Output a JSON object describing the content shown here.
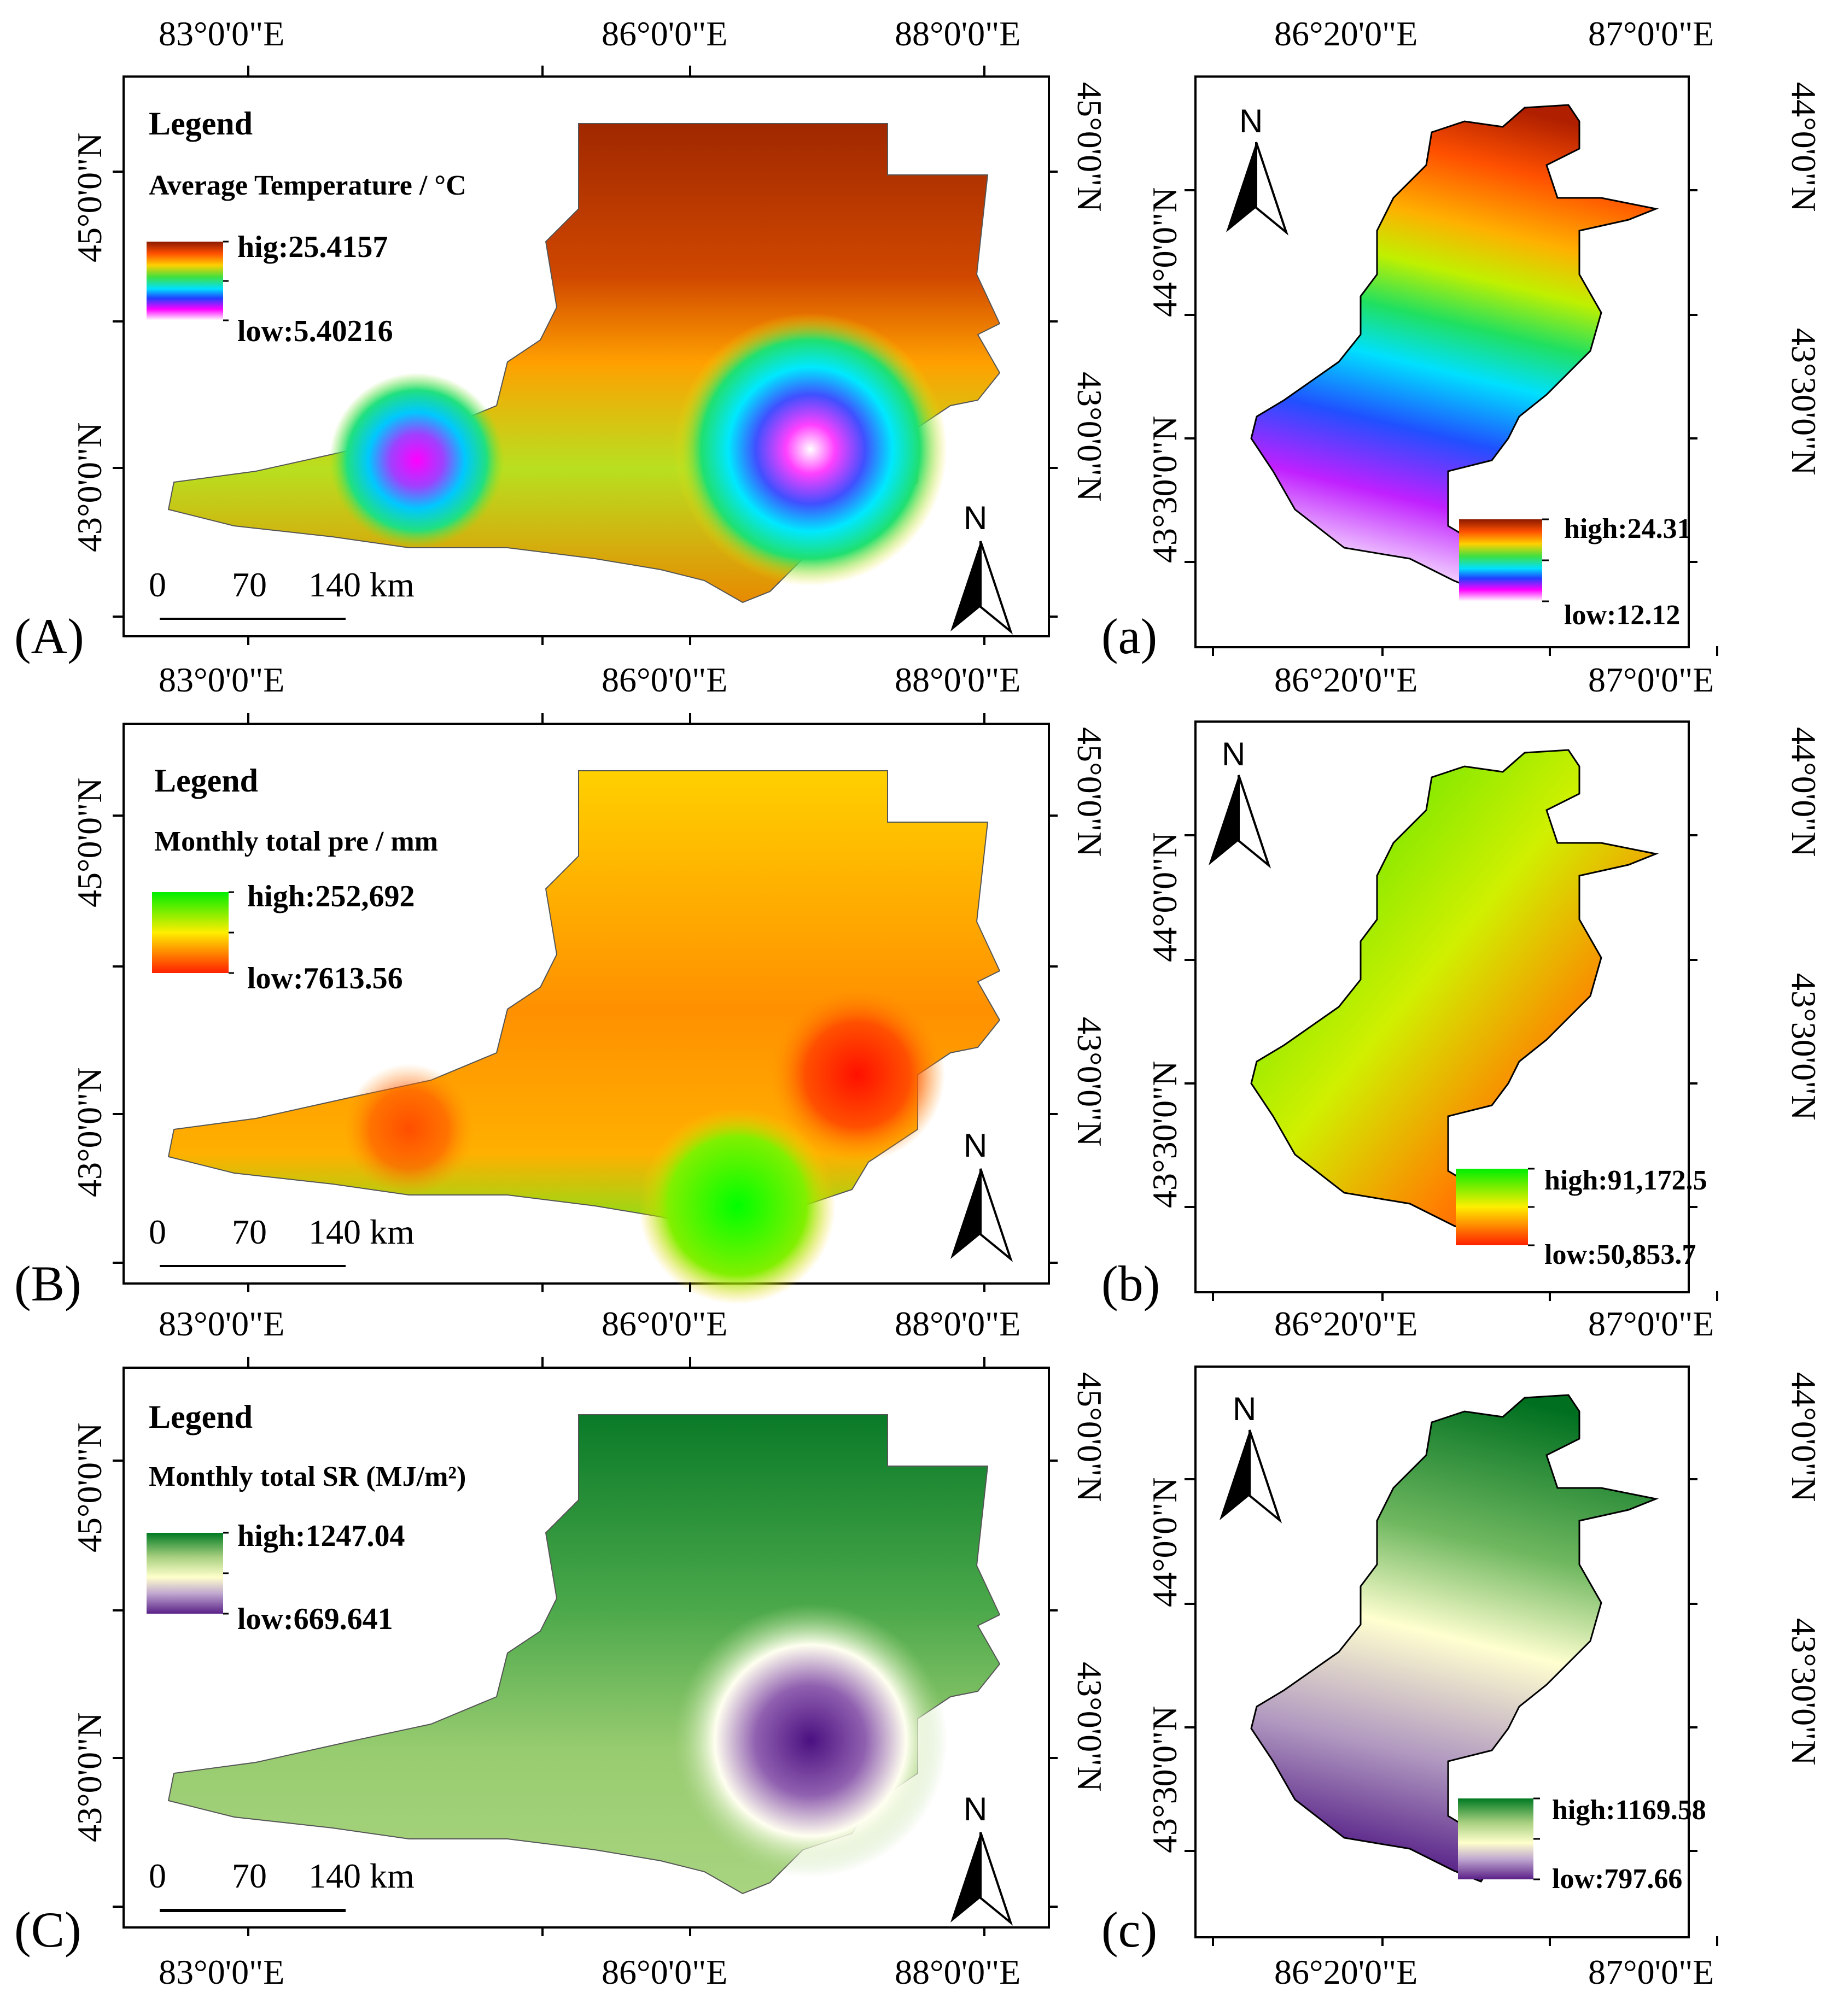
{
  "panels": {
    "A": {
      "label": "(A)",
      "legend_title": "Legend",
      "legend_subtitle": "Average Temperature / °C",
      "high": "hig:25.4157",
      "low": "low:5.40216",
      "ramp": "rainbow"
    },
    "B": {
      "label": "(B)",
      "legend_title": "Legend",
      "legend_subtitle": "Monthly total pre / mm",
      "high": "high:252,692",
      "low": "low:7613.56",
      "ramp": "green-yellow-red"
    },
    "C": {
      "label": "(C)",
      "legend_title": "Legend",
      "legend_subtitle": "Monthly total SR (MJ/m²)",
      "high": "high:1247.04",
      "low": "low:669.641",
      "ramp": "green-purple"
    },
    "a": {
      "label": "(a)",
      "high": "high:24.31",
      "low": "low:12.12"
    },
    "b": {
      "label": "(b)",
      "high": "high:91,172.5",
      "low": "low:50,853.7"
    },
    "c": {
      "label": "(c)",
      "high": "high:1169.58",
      "low": "low:797.66"
    }
  },
  "axes": {
    "large_lon": [
      "83°0'0\"E",
      "86°0'0\"E",
      "88°0'0\"E"
    ],
    "large_lat": [
      "45°0'0\"N",
      "43°0'0\"N"
    ],
    "small_lon": [
      "86°20'0\"E",
      "87°0'0\"E"
    ],
    "small_lat": [
      "44°0'0\"N",
      "43°30'0\"N"
    ]
  },
  "scale_bar": {
    "t0": "0",
    "t1": "70",
    "t2": "140 km"
  },
  "north_label": "N",
  "colors": {
    "rainbow": [
      "#8b1a00",
      "#d04000",
      "#ff8c00",
      "#ffd700",
      "#80e020",
      "#00d060",
      "#00e0ff",
      "#0040ff",
      "#ff00ff",
      "#ffffff"
    ],
    "gyr": [
      "#00ee00",
      "#ffee00",
      "#ff2000"
    ],
    "green_purple": [
      "#007a22",
      "#a8d080",
      "#ffffcc",
      "#c8b0d0",
      "#5a2088"
    ]
  }
}
